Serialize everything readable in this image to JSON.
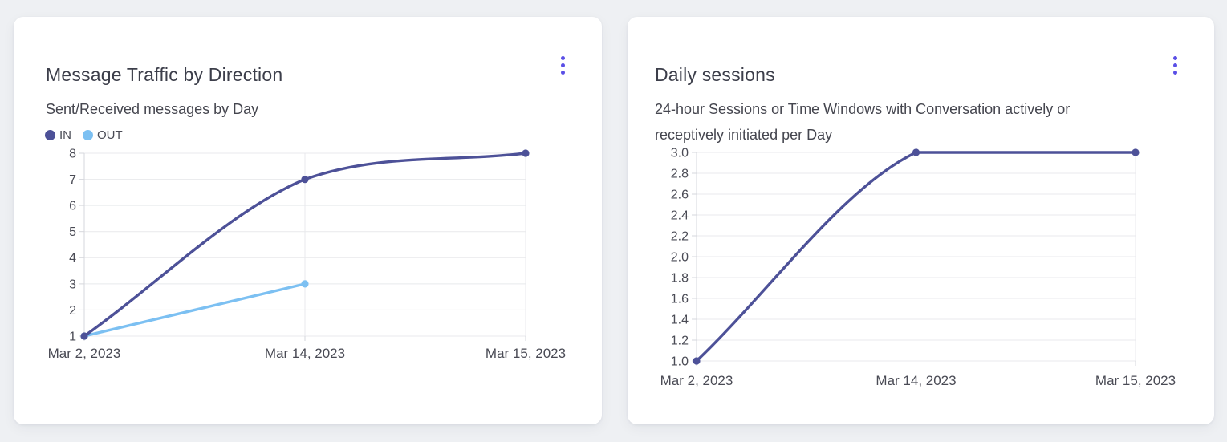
{
  "page": {
    "background": "#eef0f3"
  },
  "colors": {
    "accent": "#5a4fe6",
    "series_dark": "#4d5198",
    "series_light": "#7cc0f2",
    "grid": "#e8e9ec",
    "axis": "#d6d7dc",
    "title_text": "#3c3e4a",
    "subtitle_text": "#45464f",
    "tick_text": "#4a4b55"
  },
  "cards": [
    {
      "title": "Message Traffic by Direction",
      "menu_icon": "kebab-menu",
      "subtitle_lines": [
        "Sent/Received messages by Day"
      ],
      "legend": [
        {
          "label": "IN",
          "color": "#4d5198"
        },
        {
          "label": "OUT",
          "color": "#7cc0f2"
        }
      ]
    },
    {
      "title": "Daily sessions",
      "menu_icon": "kebab-menu",
      "subtitle_lines": [
        "24-hour Sessions or Time Windows with Conversation actively or",
        "receptively initiated per Day"
      ],
      "legend": null
    }
  ],
  "chart_data": [
    {
      "type": "line",
      "title": "Message Traffic by Direction",
      "subtitle": "Sent/Received messages by Day",
      "categories": [
        "Mar 2, 2023",
        "Mar 14, 2023",
        "Mar 15, 2023"
      ],
      "series": [
        {
          "name": "IN",
          "color": "#4d5198",
          "values": [
            1,
            7,
            8
          ]
        },
        {
          "name": "OUT",
          "color": "#7cc0f2",
          "values": [
            1,
            3,
            null
          ]
        }
      ],
      "ylim": [
        1,
        8
      ],
      "yticks": [
        "8",
        "7",
        "6",
        "5",
        "4",
        "3",
        "2",
        "1"
      ],
      "grid": true,
      "legend_position": "top-left",
      "curve": "smooth"
    },
    {
      "type": "line",
      "title": "Daily sessions",
      "subtitle": "24-hour Sessions or Time Windows with Conversation actively or receptively initiated per Day",
      "categories": [
        "Mar 2, 2023",
        "Mar 14, 2023",
        "Mar 15, 2023"
      ],
      "series": [
        {
          "name": "Daily sessions",
          "color": "#4d5198",
          "values": [
            1.0,
            3.0,
            3.0
          ]
        }
      ],
      "ylim": [
        1.0,
        3.0
      ],
      "yticks": [
        "3.0",
        "2.8",
        "2.6",
        "2.4",
        "2.2",
        "2.0",
        "1.8",
        "1.6",
        "1.4",
        "1.2",
        "1.0"
      ],
      "grid": true,
      "legend_position": "none",
      "curve": "smooth"
    }
  ]
}
